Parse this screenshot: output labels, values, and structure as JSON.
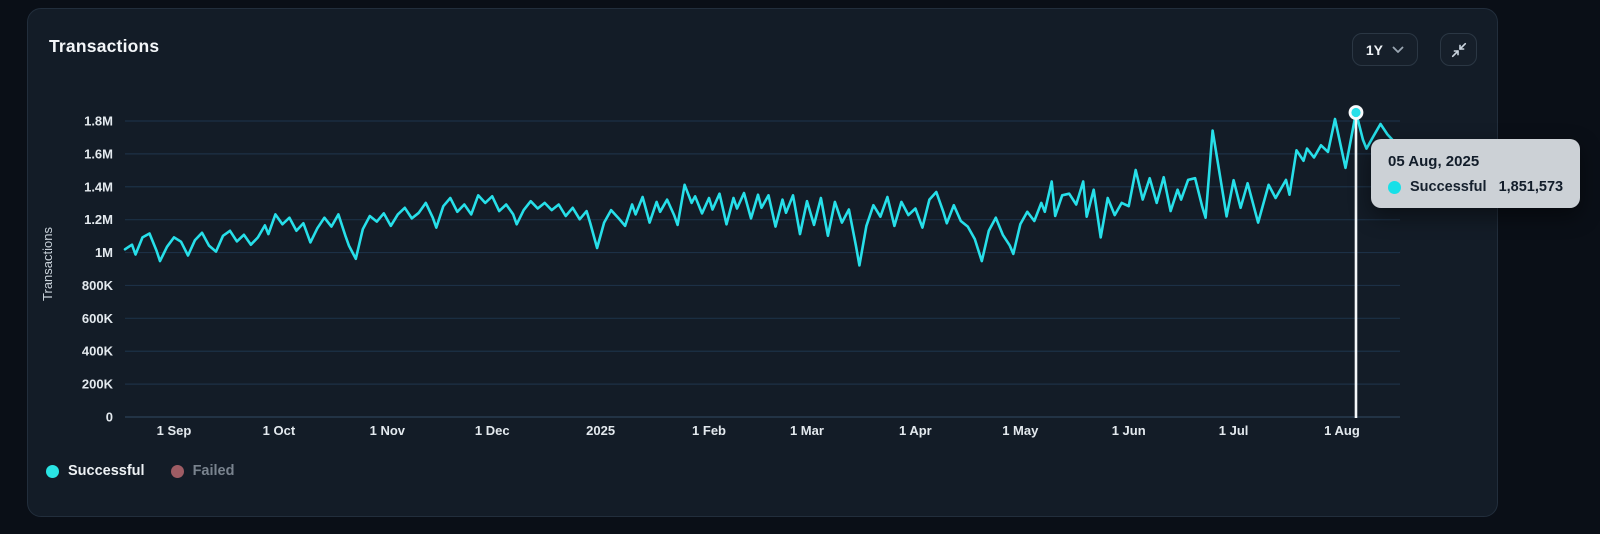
{
  "header": {
    "title": "Transactions",
    "range_selector": {
      "value": "1Y"
    },
    "collapse_icon": "arrows-pointing-in"
  },
  "tooltip": {
    "date": "05 Aug, 2025",
    "series_label": "Successful",
    "value": "1,851,573",
    "point_day": 352,
    "point_value_k": 1851.573
  },
  "colors": {
    "page_bg": "#0a0f17",
    "card_bg": "#131c27",
    "grid": "#1c3046",
    "zero_axis": "#2b4157",
    "tick_text": "#e3e9ee",
    "axis_label": "#c9d2da",
    "successful": "#27dfe9",
    "failed": "#9e5c64",
    "hover_line": "#f5f8fa",
    "tooltip_bg": "#ccd1d6"
  },
  "chart_data": {
    "type": "line",
    "title": "Transactions",
    "xlabel": "",
    "ylabel": "Transactions",
    "ylim": [
      0,
      1900000
    ],
    "grid": true,
    "legend_position": "bottom-left",
    "y_ticks": [
      {
        "label": "0",
        "value_k": 0
      },
      {
        "label": "200K",
        "value_k": 200
      },
      {
        "label": "400K",
        "value_k": 400
      },
      {
        "label": "600K",
        "value_k": 600
      },
      {
        "label": "800K",
        "value_k": 800
      },
      {
        "label": "1M",
        "value_k": 1000
      },
      {
        "label": "1.2M",
        "value_k": 1200
      },
      {
        "label": "1.4M",
        "value_k": 1400
      },
      {
        "label": "1.6M",
        "value_k": 1600
      },
      {
        "label": "1.8M",
        "value_k": 1800
      }
    ],
    "x_ticks": [
      {
        "label": "1 Sep",
        "day": 14
      },
      {
        "label": "1 Oct",
        "day": 44
      },
      {
        "label": "1 Nov",
        "day": 75
      },
      {
        "label": "1 Dec",
        "day": 105
      },
      {
        "label": "2025",
        "day": 136
      },
      {
        "label": "1 Feb",
        "day": 167
      },
      {
        "label": "1 Mar",
        "day": 195
      },
      {
        "label": "1 Apr",
        "day": 226
      },
      {
        "label": "1 May",
        "day": 256
      },
      {
        "label": "1 Jun",
        "day": 287
      },
      {
        "label": "1 Jul",
        "day": 317
      },
      {
        "label": "1 Aug",
        "day": 348
      }
    ],
    "legend": [
      {
        "label": "Successful",
        "color": "#2ae4e4",
        "disabled": false
      },
      {
        "label": "Failed",
        "color": "#9e5c64",
        "disabled": true
      }
    ],
    "series": [
      {
        "name": "Successful",
        "color": "#27dfe9",
        "unit_scale": 1000,
        "points": [
          [
            0,
            1020
          ],
          [
            2,
            1048
          ],
          [
            3,
            988
          ],
          [
            5,
            1092
          ],
          [
            7,
            1116
          ],
          [
            9,
            1012
          ],
          [
            10,
            948
          ],
          [
            12,
            1035
          ],
          [
            14,
            1092
          ],
          [
            16,
            1066
          ],
          [
            18,
            982
          ],
          [
            20,
            1076
          ],
          [
            22,
            1120
          ],
          [
            24,
            1042
          ],
          [
            26,
            1006
          ],
          [
            28,
            1102
          ],
          [
            30,
            1132
          ],
          [
            32,
            1068
          ],
          [
            34,
            1108
          ],
          [
            36,
            1048
          ],
          [
            38,
            1092
          ],
          [
            40,
            1165
          ],
          [
            41,
            1112
          ],
          [
            43,
            1232
          ],
          [
            45,
            1172
          ],
          [
            47,
            1212
          ],
          [
            49,
            1132
          ],
          [
            51,
            1178
          ],
          [
            53,
            1062
          ],
          [
            55,
            1148
          ],
          [
            57,
            1212
          ],
          [
            59,
            1158
          ],
          [
            61,
            1232
          ],
          [
            63,
            1102
          ],
          [
            64,
            1042
          ],
          [
            66,
            962
          ],
          [
            68,
            1142
          ],
          [
            70,
            1222
          ],
          [
            72,
            1188
          ],
          [
            74,
            1238
          ],
          [
            76,
            1162
          ],
          [
            78,
            1232
          ],
          [
            80,
            1272
          ],
          [
            82,
            1208
          ],
          [
            84,
            1242
          ],
          [
            86,
            1302
          ],
          [
            88,
            1212
          ],
          [
            89,
            1152
          ],
          [
            91,
            1282
          ],
          [
            93,
            1332
          ],
          [
            95,
            1248
          ],
          [
            97,
            1292
          ],
          [
            99,
            1232
          ],
          [
            101,
            1348
          ],
          [
            103,
            1302
          ],
          [
            105,
            1342
          ],
          [
            107,
            1252
          ],
          [
            109,
            1292
          ],
          [
            111,
            1232
          ],
          [
            112,
            1172
          ],
          [
            114,
            1258
          ],
          [
            116,
            1312
          ],
          [
            118,
            1268
          ],
          [
            120,
            1302
          ],
          [
            122,
            1258
          ],
          [
            124,
            1292
          ],
          [
            126,
            1222
          ],
          [
            128,
            1272
          ],
          [
            130,
            1202
          ],
          [
            132,
            1252
          ],
          [
            133,
            1182
          ],
          [
            135,
            1028
          ],
          [
            137,
            1182
          ],
          [
            139,
            1258
          ],
          [
            141,
            1212
          ],
          [
            143,
            1162
          ],
          [
            145,
            1292
          ],
          [
            146,
            1232
          ],
          [
            148,
            1338
          ],
          [
            150,
            1182
          ],
          [
            152,
            1308
          ],
          [
            153,
            1248
          ],
          [
            155,
            1322
          ],
          [
            157,
            1228
          ],
          [
            158,
            1168
          ],
          [
            160,
            1412
          ],
          [
            162,
            1302
          ],
          [
            163,
            1342
          ],
          [
            165,
            1238
          ],
          [
            167,
            1332
          ],
          [
            168,
            1262
          ],
          [
            170,
            1358
          ],
          [
            172,
            1172
          ],
          [
            174,
            1332
          ],
          [
            175,
            1268
          ],
          [
            177,
            1362
          ],
          [
            179,
            1208
          ],
          [
            181,
            1352
          ],
          [
            182,
            1272
          ],
          [
            184,
            1348
          ],
          [
            186,
            1158
          ],
          [
            188,
            1322
          ],
          [
            189,
            1242
          ],
          [
            191,
            1348
          ],
          [
            193,
            1112
          ],
          [
            195,
            1312
          ],
          [
            197,
            1168
          ],
          [
            199,
            1332
          ],
          [
            201,
            1102
          ],
          [
            203,
            1308
          ],
          [
            205,
            1182
          ],
          [
            207,
            1262
          ],
          [
            209,
            1042
          ],
          [
            210,
            922
          ],
          [
            212,
            1162
          ],
          [
            214,
            1288
          ],
          [
            216,
            1218
          ],
          [
            218,
            1338
          ],
          [
            220,
            1162
          ],
          [
            222,
            1308
          ],
          [
            224,
            1228
          ],
          [
            226,
            1268
          ],
          [
            228,
            1152
          ],
          [
            230,
            1322
          ],
          [
            232,
            1368
          ],
          [
            234,
            1248
          ],
          [
            235,
            1178
          ],
          [
            237,
            1288
          ],
          [
            239,
            1192
          ],
          [
            241,
            1158
          ],
          [
            243,
            1082
          ],
          [
            245,
            948
          ],
          [
            247,
            1132
          ],
          [
            249,
            1212
          ],
          [
            251,
            1108
          ],
          [
            253,
            1042
          ],
          [
            254,
            992
          ],
          [
            256,
            1172
          ],
          [
            258,
            1248
          ],
          [
            260,
            1192
          ],
          [
            262,
            1302
          ],
          [
            263,
            1248
          ],
          [
            265,
            1432
          ],
          [
            266,
            1222
          ],
          [
            268,
            1348
          ],
          [
            270,
            1358
          ],
          [
            272,
            1292
          ],
          [
            274,
            1432
          ],
          [
            275,
            1218
          ],
          [
            277,
            1382
          ],
          [
            279,
            1092
          ],
          [
            281,
            1332
          ],
          [
            283,
            1228
          ],
          [
            285,
            1302
          ],
          [
            287,
            1282
          ],
          [
            289,
            1502
          ],
          [
            291,
            1322
          ],
          [
            293,
            1452
          ],
          [
            295,
            1302
          ],
          [
            297,
            1458
          ],
          [
            299,
            1252
          ],
          [
            301,
            1382
          ],
          [
            302,
            1322
          ],
          [
            304,
            1442
          ],
          [
            306,
            1452
          ],
          [
            308,
            1282
          ],
          [
            309,
            1212
          ],
          [
            311,
            1742
          ],
          [
            315,
            1220
          ],
          [
            317,
            1440
          ],
          [
            319,
            1272
          ],
          [
            321,
            1422
          ],
          [
            324,
            1182
          ],
          [
            327,
            1412
          ],
          [
            329,
            1332
          ],
          [
            332,
            1442
          ],
          [
            333,
            1352
          ],
          [
            335,
            1622
          ],
          [
            337,
            1558
          ],
          [
            338,
            1632
          ],
          [
            340,
            1578
          ],
          [
            342,
            1652
          ],
          [
            344,
            1612
          ],
          [
            346,
            1812
          ],
          [
            349,
            1515
          ],
          [
            352,
            1851.573
          ],
          [
            354,
            1685
          ],
          [
            355,
            1632
          ],
          [
            357,
            1708
          ],
          [
            359,
            1782
          ],
          [
            361,
            1718
          ],
          [
            363,
            1672
          ]
        ]
      },
      {
        "name": "Failed",
        "color": "#9e5c64",
        "unit_scale": 1000,
        "points": []
      }
    ]
  }
}
